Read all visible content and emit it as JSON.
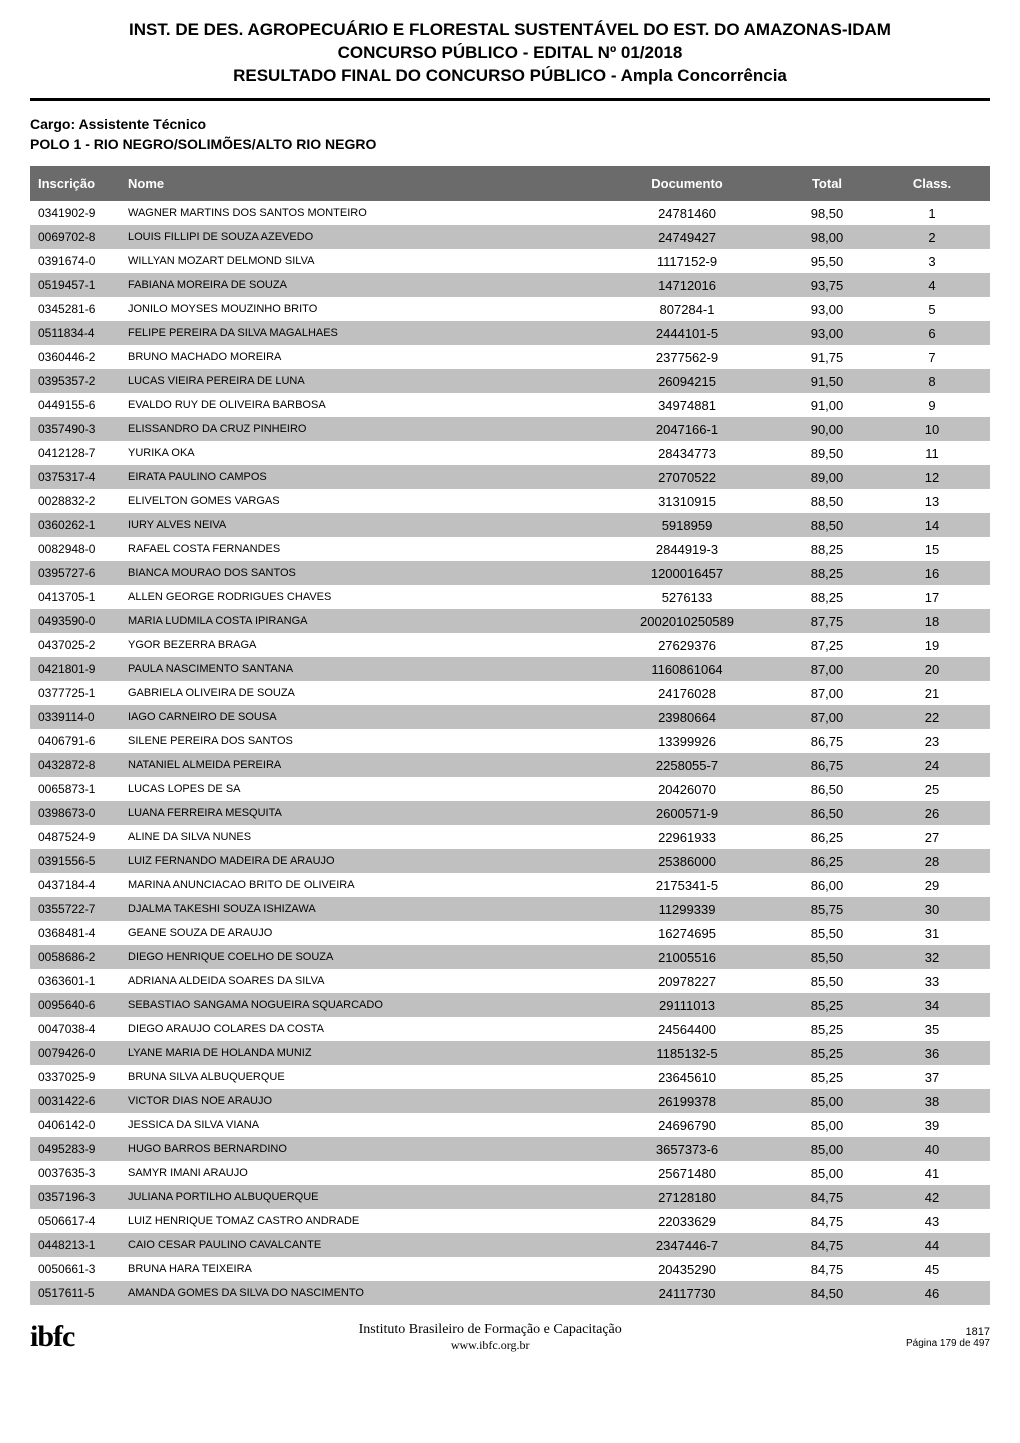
{
  "header": {
    "line1": "INST. DE DES. AGROPECUÁRIO E FLORESTAL SUSTENTÁVEL DO EST. DO AMAZONAS-IDAM",
    "line2": "CONCURSO PÚBLICO - EDITAL Nº 01/2018",
    "line3": "RESULTADO FINAL DO CONCURSO PÚBLICO - Ampla Concorrência"
  },
  "subheader": {
    "cargo": "Cargo: Assistente Técnico",
    "polo": "POLO 1 - RIO NEGRO/SOLIMÕES/ALTO RIO NEGRO"
  },
  "columns": {
    "inscricao": "Inscrição",
    "nome": "Nome",
    "documento": "Documento",
    "total": "Total",
    "class": "Class."
  },
  "rows": [
    {
      "inscricao": "0341902-9",
      "nome": "WAGNER MARTINS DOS SANTOS MONTEIRO",
      "documento": "24781460",
      "total": "98,50",
      "class": "1"
    },
    {
      "inscricao": "0069702-8",
      "nome": "LOUIS FILLIPI DE SOUZA AZEVEDO",
      "documento": "24749427",
      "total": "98,00",
      "class": "2"
    },
    {
      "inscricao": "0391674-0",
      "nome": "WILLYAN MOZART DELMOND SILVA",
      "documento": "1117152-9",
      "total": "95,50",
      "class": "3"
    },
    {
      "inscricao": "0519457-1",
      "nome": "FABIANA MOREIRA DE SOUZA",
      "documento": "14712016",
      "total": "93,75",
      "class": "4"
    },
    {
      "inscricao": "0345281-6",
      "nome": "JONILO MOYSES MOUZINHO BRITO",
      "documento": "807284-1",
      "total": "93,00",
      "class": "5"
    },
    {
      "inscricao": "0511834-4",
      "nome": "FELIPE PEREIRA DA SILVA MAGALHAES",
      "documento": "2444101-5",
      "total": "93,00",
      "class": "6"
    },
    {
      "inscricao": "0360446-2",
      "nome": "BRUNO MACHADO MOREIRA",
      "documento": "2377562-9",
      "total": "91,75",
      "class": "7"
    },
    {
      "inscricao": "0395357-2",
      "nome": "LUCAS VIEIRA PEREIRA DE LUNA",
      "documento": "26094215",
      "total": "91,50",
      "class": "8"
    },
    {
      "inscricao": "0449155-6",
      "nome": "EVALDO RUY DE OLIVEIRA BARBOSA",
      "documento": "34974881",
      "total": "91,00",
      "class": "9"
    },
    {
      "inscricao": "0357490-3",
      "nome": "ELISSANDRO DA CRUZ PINHEIRO",
      "documento": "2047166-1",
      "total": "90,00",
      "class": "10"
    },
    {
      "inscricao": "0412128-7",
      "nome": "YURIKA OKA",
      "documento": "28434773",
      "total": "89,50",
      "class": "11"
    },
    {
      "inscricao": "0375317-4",
      "nome": "EIRATA PAULINO CAMPOS",
      "documento": "27070522",
      "total": "89,00",
      "class": "12"
    },
    {
      "inscricao": "0028832-2",
      "nome": "ELIVELTON GOMES VARGAS",
      "documento": "31310915",
      "total": "88,50",
      "class": "13"
    },
    {
      "inscricao": "0360262-1",
      "nome": "IURY ALVES NEIVA",
      "documento": "5918959",
      "total": "88,50",
      "class": "14"
    },
    {
      "inscricao": "0082948-0",
      "nome": "RAFAEL COSTA FERNANDES",
      "documento": "2844919-3",
      "total": "88,25",
      "class": "15"
    },
    {
      "inscricao": "0395727-6",
      "nome": "BIANCA MOURAO DOS SANTOS",
      "documento": "1200016457",
      "total": "88,25",
      "class": "16"
    },
    {
      "inscricao": "0413705-1",
      "nome": "ALLEN GEORGE RODRIGUES CHAVES",
      "documento": "5276133",
      "total": "88,25",
      "class": "17"
    },
    {
      "inscricao": "0493590-0",
      "nome": "MARIA LUDMILA COSTA IPIRANGA",
      "documento": "2002010250589",
      "total": "87,75",
      "class": "18"
    },
    {
      "inscricao": "0437025-2",
      "nome": "YGOR BEZERRA BRAGA",
      "documento": "27629376",
      "total": "87,25",
      "class": "19"
    },
    {
      "inscricao": "0421801-9",
      "nome": "PAULA NASCIMENTO SANTANA",
      "documento": "1160861064",
      "total": "87,00",
      "class": "20"
    },
    {
      "inscricao": "0377725-1",
      "nome": "GABRIELA OLIVEIRA DE SOUZA",
      "documento": "24176028",
      "total": "87,00",
      "class": "21"
    },
    {
      "inscricao": "0339114-0",
      "nome": "IAGO CARNEIRO DE SOUSA",
      "documento": "23980664",
      "total": "87,00",
      "class": "22"
    },
    {
      "inscricao": "0406791-6",
      "nome": "SILENE PEREIRA DOS SANTOS",
      "documento": "13399926",
      "total": "86,75",
      "class": "23"
    },
    {
      "inscricao": "0432872-8",
      "nome": "NATANIEL ALMEIDA PEREIRA",
      "documento": "2258055-7",
      "total": "86,75",
      "class": "24"
    },
    {
      "inscricao": "0065873-1",
      "nome": "LUCAS LOPES DE SA",
      "documento": "20426070",
      "total": "86,50",
      "class": "25"
    },
    {
      "inscricao": "0398673-0",
      "nome": "LUANA FERREIRA MESQUITA",
      "documento": "2600571-9",
      "total": "86,50",
      "class": "26"
    },
    {
      "inscricao": "0487524-9",
      "nome": "ALINE DA SILVA NUNES",
      "documento": "22961933",
      "total": "86,25",
      "class": "27"
    },
    {
      "inscricao": "0391556-5",
      "nome": "LUIZ FERNANDO MADEIRA DE ARAUJO",
      "documento": "25386000",
      "total": "86,25",
      "class": "28"
    },
    {
      "inscricao": "0437184-4",
      "nome": "MARINA ANUNCIACAO BRITO DE OLIVEIRA",
      "documento": "2175341-5",
      "total": "86,00",
      "class": "29"
    },
    {
      "inscricao": "0355722-7",
      "nome": "DJALMA TAKESHI SOUZA ISHIZAWA",
      "documento": "11299339",
      "total": "85,75",
      "class": "30"
    },
    {
      "inscricao": "0368481-4",
      "nome": "GEANE SOUZA DE ARAUJO",
      "documento": "16274695",
      "total": "85,50",
      "class": "31"
    },
    {
      "inscricao": "0058686-2",
      "nome": "DIEGO HENRIQUE COELHO DE SOUZA",
      "documento": "21005516",
      "total": "85,50",
      "class": "32"
    },
    {
      "inscricao": "0363601-1",
      "nome": "ADRIANA ALDEIDA SOARES DA SILVA",
      "documento": "20978227",
      "total": "85,50",
      "class": "33"
    },
    {
      "inscricao": "0095640-6",
      "nome": "SEBASTIAO SANGAMA NOGUEIRA SQUARCADO",
      "documento": "29111013",
      "total": "85,25",
      "class": "34"
    },
    {
      "inscricao": "0047038-4",
      "nome": "DIEGO ARAUJO COLARES DA COSTA",
      "documento": "24564400",
      "total": "85,25",
      "class": "35"
    },
    {
      "inscricao": "0079426-0",
      "nome": "LYANE MARIA DE HOLANDA MUNIZ",
      "documento": "1185132-5",
      "total": "85,25",
      "class": "36"
    },
    {
      "inscricao": "0337025-9",
      "nome": "BRUNA SILVA ALBUQUERQUE",
      "documento": "23645610",
      "total": "85,25",
      "class": "37"
    },
    {
      "inscricao": "0031422-6",
      "nome": "VICTOR DIAS NOE ARAUJO",
      "documento": "26199378",
      "total": "85,00",
      "class": "38"
    },
    {
      "inscricao": "0406142-0",
      "nome": "JESSICA DA SILVA VIANA",
      "documento": "24696790",
      "total": "85,00",
      "class": "39"
    },
    {
      "inscricao": "0495283-9",
      "nome": "HUGO BARROS BERNARDINO",
      "documento": "3657373-6",
      "total": "85,00",
      "class": "40"
    },
    {
      "inscricao": "0037635-3",
      "nome": "SAMYR IMANI ARAUJO",
      "documento": "25671480",
      "total": "85,00",
      "class": "41"
    },
    {
      "inscricao": "0357196-3",
      "nome": "JULIANA PORTILHO ALBUQUERQUE",
      "documento": "27128180",
      "total": "84,75",
      "class": "42"
    },
    {
      "inscricao": "0506617-4",
      "nome": "LUIZ HENRIQUE TOMAZ CASTRO ANDRADE",
      "documento": "22033629",
      "total": "84,75",
      "class": "43"
    },
    {
      "inscricao": "0448213-1",
      "nome": "CAIO CESAR PAULINO CAVALCANTE",
      "documento": "2347446-7",
      "total": "84,75",
      "class": "44"
    },
    {
      "inscricao": "0050661-3",
      "nome": "BRUNA HARA TEIXEIRA",
      "documento": "20435290",
      "total": "84,75",
      "class": "45"
    },
    {
      "inscricao": "0517611-5",
      "nome": "AMANDA GOMES DA SILVA DO NASCIMENTO",
      "documento": "24117730",
      "total": "84,50",
      "class": "46"
    }
  ],
  "footer": {
    "logo": "ibfc",
    "org": "Instituto Brasileiro de Formação e Capacitação",
    "url": "www.ibfc.org.br",
    "docnum": "1817",
    "pagenum": "Página 179 de 497"
  },
  "styling": {
    "row_even_bg": "#ffffff",
    "row_odd_bg": "#c0c0c0",
    "header_bg": "#6b6b6b",
    "header_fg": "#ffffff"
  }
}
